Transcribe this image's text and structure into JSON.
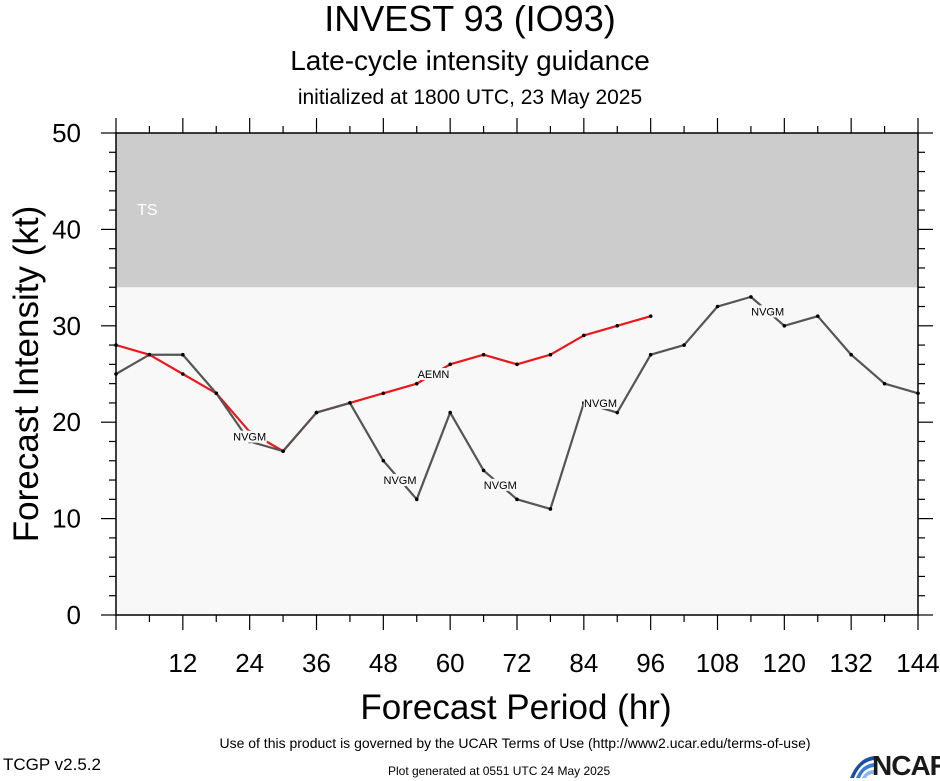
{
  "header": {
    "title": "INVEST 93 (IO93)",
    "subtitle": "Late-cycle intensity guidance",
    "initialized": "initialized at 1800 UTC, 23 May 2025"
  },
  "footer": {
    "terms": "Use of this product is governed by the UCAR Terms of Use (http://www2.ucar.edu/terms-of-use)",
    "version": "TCGP v2.5.2",
    "generated": "Plot generated at 0551 UTC   24 May 2025",
    "logo_text": "NCAR",
    "logo_icon": "ncar-wave-icon"
  },
  "chart_data": {
    "type": "line",
    "title": "INVEST 93 (IO93)",
    "xlabel": "Forecast Period (hr)",
    "ylabel": "Forecast Intensity (kt)",
    "xlim": [
      0,
      144
    ],
    "ylim": [
      0,
      50
    ],
    "x_ticks": [
      12,
      24,
      36,
      48,
      60,
      72,
      84,
      96,
      108,
      120,
      132,
      144
    ],
    "y_ticks": [
      0,
      10,
      20,
      30,
      40,
      50
    ],
    "bands": [
      {
        "label": "TS",
        "from": 34,
        "to": 50,
        "color": "#cccccc"
      }
    ],
    "plot_background": "#f8f8f8",
    "series": [
      {
        "name": "AEMN",
        "color": "#e8191c",
        "x": [
          0,
          6,
          12,
          18,
          24,
          30,
          36,
          42,
          48,
          54,
          60,
          66,
          72,
          78,
          84,
          90,
          96
        ],
        "y": [
          28,
          27,
          25,
          23,
          19,
          17,
          21,
          22,
          23,
          24,
          26,
          27,
          26,
          27,
          29,
          30,
          31
        ],
        "labels": [
          {
            "x": 24,
            "y": 18.5,
            "text": "AEMN"
          },
          {
            "x": 57,
            "y": 25,
            "text": "AEMN"
          }
        ]
      },
      {
        "name": "NVGM",
        "color": "#555555",
        "x": [
          0,
          6,
          12,
          18,
          24,
          30,
          36,
          42,
          48,
          54,
          60,
          66,
          72,
          78,
          84,
          90,
          96,
          102,
          108,
          114,
          120,
          126,
          132,
          138,
          144
        ],
        "y": [
          25,
          27,
          27,
          23,
          18,
          17,
          21,
          22,
          16,
          12,
          21,
          15,
          12,
          11,
          22,
          21,
          27,
          28,
          32,
          33,
          30,
          31,
          27,
          24,
          23
        ],
        "labels": [
          {
            "x": 24,
            "y": 18.5,
            "text": "NVGM"
          },
          {
            "x": 51,
            "y": 14,
            "text": "NVGM"
          },
          {
            "x": 69,
            "y": 13.5,
            "text": "NVGM"
          },
          {
            "x": 87,
            "y": 22,
            "text": "NVGM"
          },
          {
            "x": 117,
            "y": 31.5,
            "text": "NVGM"
          }
        ]
      }
    ]
  }
}
